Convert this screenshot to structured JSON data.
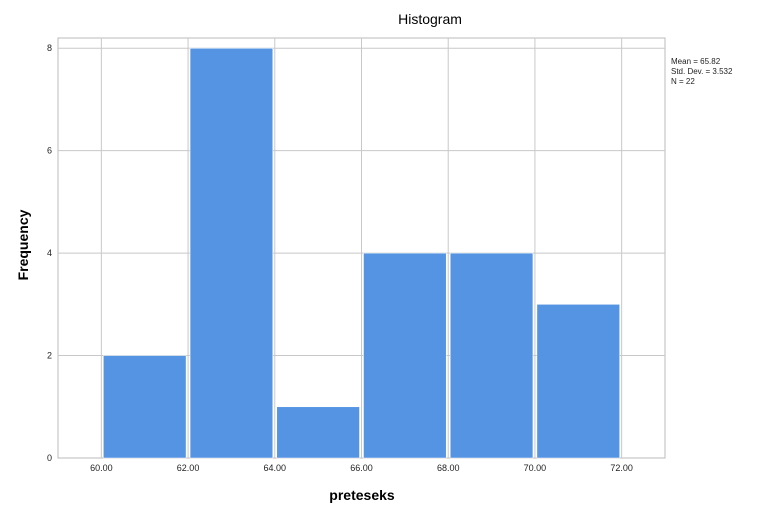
{
  "chart_data": {
    "type": "bar",
    "title": "Histogram",
    "xlabel": "preteseks",
    "ylabel": "Frequency",
    "bin_edges": [
      60,
      62,
      64,
      66,
      68,
      70,
      72
    ],
    "x_tick_labels": [
      "60.00",
      "62.00",
      "64.00",
      "66.00",
      "68.00",
      "70.00",
      "72.00"
    ],
    "values": [
      2,
      8,
      1,
      4,
      4,
      3
    ],
    "y_ticks": [
      0,
      2,
      4,
      6,
      8
    ],
    "xlim": [
      59,
      73
    ],
    "ylim": [
      0,
      8.2
    ],
    "grid": true,
    "bar_color": "#5594e3",
    "stats": [
      "Mean = 65.82",
      "Std. Dev. = 3.532",
      "N = 22"
    ]
  }
}
